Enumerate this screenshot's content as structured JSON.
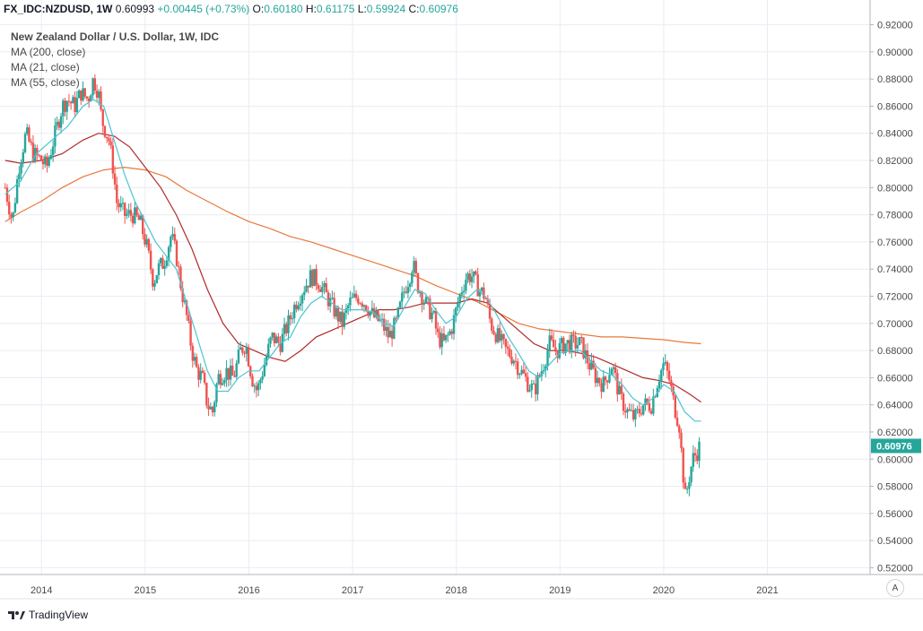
{
  "header": {
    "symbol": "FX_IDC:NZDUSD, 1W",
    "last": "0.60993",
    "change": "+0.00445 (+0.73%)",
    "o_label": "O:",
    "o_value": "0.60180",
    "h_label": "H:",
    "h_value": "0.61175",
    "l_label": "L:",
    "l_value": "0.59924",
    "c_label": "C:",
    "c_value": "0.60976"
  },
  "legend": {
    "title": "New Zealand Dollar / U.S. Dollar, 1W, IDC",
    "ma200": "MA (200, close)",
    "ma21": "MA (21, close)",
    "ma55": "MA (55, close)"
  },
  "footer": {
    "brand": "TradingView"
  },
  "auto_label": "A",
  "colors": {
    "up": "#26a69a",
    "down": "#ef5350",
    "ma21": "#4dc4d4",
    "ma55": "#b02a2a",
    "ma200": "#e8793a",
    "grid": "#e9ecf2",
    "price_tag": "#26a69a"
  },
  "chart_data": {
    "type": "candlestick",
    "title": "New Zealand Dollar / U.S. Dollar, 1W, IDC",
    "current_price_label": "0.60976",
    "y_ticks": [
      "0.92000",
      "0.90000",
      "0.88000",
      "0.86000",
      "0.84000",
      "0.82000",
      "0.80000",
      "0.78000",
      "0.76000",
      "0.74000",
      "0.72000",
      "0.70000",
      "0.68000",
      "0.66000",
      "0.64000",
      "0.62000",
      "0.60000",
      "0.58000",
      "0.56000",
      "0.54000",
      "0.52000"
    ],
    "x_ticks": [
      "2014",
      "2015",
      "2016",
      "2017",
      "2018",
      "2019",
      "2020",
      "2021"
    ],
    "ylim": [
      0.515,
      0.925
    ],
    "xlim": [
      2013.6,
      2021.99
    ],
    "price_path": [
      [
        2013.65,
        0.8
      ],
      [
        2013.72,
        0.775
      ],
      [
        2013.78,
        0.815
      ],
      [
        2013.85,
        0.84
      ],
      [
        2013.92,
        0.825
      ],
      [
        2014.0,
        0.82
      ],
      [
        2014.05,
        0.815
      ],
      [
        2014.1,
        0.83
      ],
      [
        2014.15,
        0.845
      ],
      [
        2014.2,
        0.86
      ],
      [
        2014.25,
        0.865
      ],
      [
        2014.32,
        0.86
      ],
      [
        2014.38,
        0.87
      ],
      [
        2014.45,
        0.865
      ],
      [
        2014.5,
        0.88
      ],
      [
        2014.55,
        0.87
      ],
      [
        2014.58,
        0.85
      ],
      [
        2014.65,
        0.835
      ],
      [
        2014.7,
        0.81
      ],
      [
        2014.72,
        0.79
      ],
      [
        2014.8,
        0.78
      ],
      [
        2014.88,
        0.78
      ],
      [
        2014.95,
        0.775
      ],
      [
        2015.02,
        0.755
      ],
      [
        2015.08,
        0.73
      ],
      [
        2015.12,
        0.74
      ],
      [
        2015.18,
        0.745
      ],
      [
        2015.25,
        0.765
      ],
      [
        2015.3,
        0.75
      ],
      [
        2015.35,
        0.725
      ],
      [
        2015.4,
        0.705
      ],
      [
        2015.45,
        0.68
      ],
      [
        2015.5,
        0.665
      ],
      [
        2015.55,
        0.66
      ],
      [
        2015.6,
        0.64
      ],
      [
        2015.65,
        0.635
      ],
      [
        2015.7,
        0.66
      ],
      [
        2015.78,
        0.665
      ],
      [
        2015.85,
        0.66
      ],
      [
        2015.92,
        0.68
      ],
      [
        2015.97,
        0.685
      ],
      [
        2016.03,
        0.66
      ],
      [
        2016.08,
        0.65
      ],
      [
        2016.15,
        0.67
      ],
      [
        2016.22,
        0.69
      ],
      [
        2016.3,
        0.685
      ],
      [
        2016.38,
        0.7
      ],
      [
        2016.45,
        0.715
      ],
      [
        2016.52,
        0.725
      ],
      [
        2016.6,
        0.735
      ],
      [
        2016.68,
        0.73
      ],
      [
        2016.75,
        0.72
      ],
      [
        2016.82,
        0.71
      ],
      [
        2016.9,
        0.7
      ],
      [
        2016.97,
        0.715
      ],
      [
        2017.05,
        0.72
      ],
      [
        2017.12,
        0.715
      ],
      [
        2017.2,
        0.705
      ],
      [
        2017.28,
        0.7
      ],
      [
        2017.35,
        0.69
      ],
      [
        2017.42,
        0.7
      ],
      [
        2017.5,
        0.725
      ],
      [
        2017.55,
        0.735
      ],
      [
        2017.58,
        0.745
      ],
      [
        2017.62,
        0.73
      ],
      [
        2017.7,
        0.715
      ],
      [
        2017.78,
        0.705
      ],
      [
        2017.82,
        0.69
      ],
      [
        2017.88,
        0.685
      ],
      [
        2017.95,
        0.695
      ],
      [
        2018.0,
        0.71
      ],
      [
        2018.05,
        0.725
      ],
      [
        2018.1,
        0.735
      ],
      [
        2018.15,
        0.735
      ],
      [
        2018.22,
        0.725
      ],
      [
        2018.28,
        0.72
      ],
      [
        2018.33,
        0.7
      ],
      [
        2018.4,
        0.69
      ],
      [
        2018.48,
        0.68
      ],
      [
        2018.55,
        0.675
      ],
      [
        2018.62,
        0.665
      ],
      [
        2018.7,
        0.655
      ],
      [
        2018.75,
        0.65
      ],
      [
        2018.82,
        0.665
      ],
      [
        2018.9,
        0.685
      ],
      [
        2018.97,
        0.68
      ],
      [
        2019.05,
        0.685
      ],
      [
        2019.12,
        0.685
      ],
      [
        2019.2,
        0.685
      ],
      [
        2019.28,
        0.67
      ],
      [
        2019.35,
        0.66
      ],
      [
        2019.42,
        0.655
      ],
      [
        2019.5,
        0.67
      ],
      [
        2019.58,
        0.645
      ],
      [
        2019.65,
        0.635
      ],
      [
        2019.72,
        0.63
      ],
      [
        2019.8,
        0.64
      ],
      [
        2019.88,
        0.64
      ],
      [
        2019.95,
        0.66
      ],
      [
        2020.0,
        0.67
      ],
      [
        2020.05,
        0.66
      ],
      [
        2020.1,
        0.64
      ],
      [
        2020.15,
        0.625
      ],
      [
        2020.18,
        0.595
      ],
      [
        2020.21,
        0.57
      ],
      [
        2020.24,
        0.585
      ],
      [
        2020.28,
        0.6
      ],
      [
        2020.32,
        0.605
      ],
      [
        2020.35,
        0.61
      ]
    ],
    "ma21": [
      [
        2013.65,
        0.795
      ],
      [
        2013.8,
        0.805
      ],
      [
        2013.95,
        0.825
      ],
      [
        2014.1,
        0.835
      ],
      [
        2014.25,
        0.845
      ],
      [
        2014.4,
        0.86
      ],
      [
        2014.5,
        0.865
      ],
      [
        2014.6,
        0.86
      ],
      [
        2014.7,
        0.835
      ],
      [
        2014.8,
        0.81
      ],
      [
        2014.9,
        0.79
      ],
      [
        2015.0,
        0.775
      ],
      [
        2015.1,
        0.76
      ],
      [
        2015.2,
        0.75
      ],
      [
        2015.3,
        0.74
      ],
      [
        2015.4,
        0.715
      ],
      [
        2015.5,
        0.69
      ],
      [
        2015.6,
        0.665
      ],
      [
        2015.7,
        0.65
      ],
      [
        2015.8,
        0.65
      ],
      [
        2015.9,
        0.66
      ],
      [
        2016.0,
        0.665
      ],
      [
        2016.1,
        0.665
      ],
      [
        2016.2,
        0.675
      ],
      [
        2016.3,
        0.685
      ],
      [
        2016.4,
        0.69
      ],
      [
        2016.5,
        0.705
      ],
      [
        2016.6,
        0.715
      ],
      [
        2016.7,
        0.72
      ],
      [
        2016.8,
        0.715
      ],
      [
        2016.9,
        0.71
      ],
      [
        2017.0,
        0.71
      ],
      [
        2017.1,
        0.71
      ],
      [
        2017.2,
        0.708
      ],
      [
        2017.3,
        0.7
      ],
      [
        2017.4,
        0.698
      ],
      [
        2017.5,
        0.712
      ],
      [
        2017.6,
        0.725
      ],
      [
        2017.7,
        0.722
      ],
      [
        2017.8,
        0.71
      ],
      [
        2017.9,
        0.7
      ],
      [
        2018.0,
        0.705
      ],
      [
        2018.1,
        0.718
      ],
      [
        2018.2,
        0.725
      ],
      [
        2018.3,
        0.718
      ],
      [
        2018.4,
        0.705
      ],
      [
        2018.5,
        0.69
      ],
      [
        2018.6,
        0.678
      ],
      [
        2018.7,
        0.665
      ],
      [
        2018.8,
        0.66
      ],
      [
        2018.9,
        0.67
      ],
      [
        2019.0,
        0.678
      ],
      [
        2019.1,
        0.68
      ],
      [
        2019.2,
        0.68
      ],
      [
        2019.3,
        0.672
      ],
      [
        2019.4,
        0.665
      ],
      [
        2019.5,
        0.662
      ],
      [
        2019.6,
        0.655
      ],
      [
        2019.7,
        0.645
      ],
      [
        2019.8,
        0.64
      ],
      [
        2019.9,
        0.645
      ],
      [
        2020.0,
        0.655
      ],
      [
        2020.1,
        0.65
      ],
      [
        2020.2,
        0.635
      ],
      [
        2020.3,
        0.628
      ],
      [
        2020.36,
        0.628
      ]
    ],
    "ma55": [
      [
        2013.65,
        0.82
      ],
      [
        2013.8,
        0.818
      ],
      [
        2014.0,
        0.82
      ],
      [
        2014.2,
        0.825
      ],
      [
        2014.4,
        0.835
      ],
      [
        2014.55,
        0.84
      ],
      [
        2014.7,
        0.838
      ],
      [
        2014.85,
        0.83
      ],
      [
        2015.0,
        0.815
      ],
      [
        2015.15,
        0.8
      ],
      [
        2015.3,
        0.78
      ],
      [
        2015.45,
        0.755
      ],
      [
        2015.6,
        0.725
      ],
      [
        2015.75,
        0.7
      ],
      [
        2015.9,
        0.685
      ],
      [
        2016.05,
        0.68
      ],
      [
        2016.2,
        0.675
      ],
      [
        2016.35,
        0.672
      ],
      [
        2016.5,
        0.68
      ],
      [
        2016.65,
        0.69
      ],
      [
        2016.8,
        0.695
      ],
      [
        2016.95,
        0.7
      ],
      [
        2017.1,
        0.705
      ],
      [
        2017.25,
        0.71
      ],
      [
        2017.4,
        0.71
      ],
      [
        2017.55,
        0.712
      ],
      [
        2017.7,
        0.715
      ],
      [
        2017.85,
        0.715
      ],
      [
        2018.0,
        0.715
      ],
      [
        2018.15,
        0.718
      ],
      [
        2018.3,
        0.715
      ],
      [
        2018.45,
        0.705
      ],
      [
        2018.6,
        0.695
      ],
      [
        2018.75,
        0.685
      ],
      [
        2018.9,
        0.68
      ],
      [
        2019.05,
        0.68
      ],
      [
        2019.2,
        0.678
      ],
      [
        2019.35,
        0.675
      ],
      [
        2019.5,
        0.67
      ],
      [
        2019.65,
        0.665
      ],
      [
        2019.8,
        0.66
      ],
      [
        2019.95,
        0.658
      ],
      [
        2020.1,
        0.655
      ],
      [
        2020.25,
        0.648
      ],
      [
        2020.36,
        0.642
      ]
    ],
    "ma200": [
      [
        2013.65,
        0.775
      ],
      [
        2013.8,
        0.782
      ],
      [
        2014.0,
        0.79
      ],
      [
        2014.2,
        0.8
      ],
      [
        2014.4,
        0.808
      ],
      [
        2014.6,
        0.813
      ],
      [
        2014.8,
        0.815
      ],
      [
        2015.0,
        0.813
      ],
      [
        2015.2,
        0.808
      ],
      [
        2015.4,
        0.798
      ],
      [
        2015.6,
        0.79
      ],
      [
        2015.8,
        0.782
      ],
      [
        2016.0,
        0.775
      ],
      [
        2016.2,
        0.77
      ],
      [
        2016.4,
        0.764
      ],
      [
        2016.6,
        0.76
      ],
      [
        2016.8,
        0.755
      ],
      [
        2017.0,
        0.75
      ],
      [
        2017.2,
        0.745
      ],
      [
        2017.4,
        0.74
      ],
      [
        2017.6,
        0.735
      ],
      [
        2017.8,
        0.728
      ],
      [
        2018.0,
        0.722
      ],
      [
        2018.2,
        0.716
      ],
      [
        2018.4,
        0.708
      ],
      [
        2018.6,
        0.7
      ],
      [
        2018.8,
        0.696
      ],
      [
        2019.0,
        0.694
      ],
      [
        2019.2,
        0.692
      ],
      [
        2019.4,
        0.69
      ],
      [
        2019.6,
        0.69
      ],
      [
        2019.8,
        0.689
      ],
      [
        2020.0,
        0.688
      ],
      [
        2020.2,
        0.686
      ],
      [
        2020.36,
        0.685
      ]
    ]
  }
}
